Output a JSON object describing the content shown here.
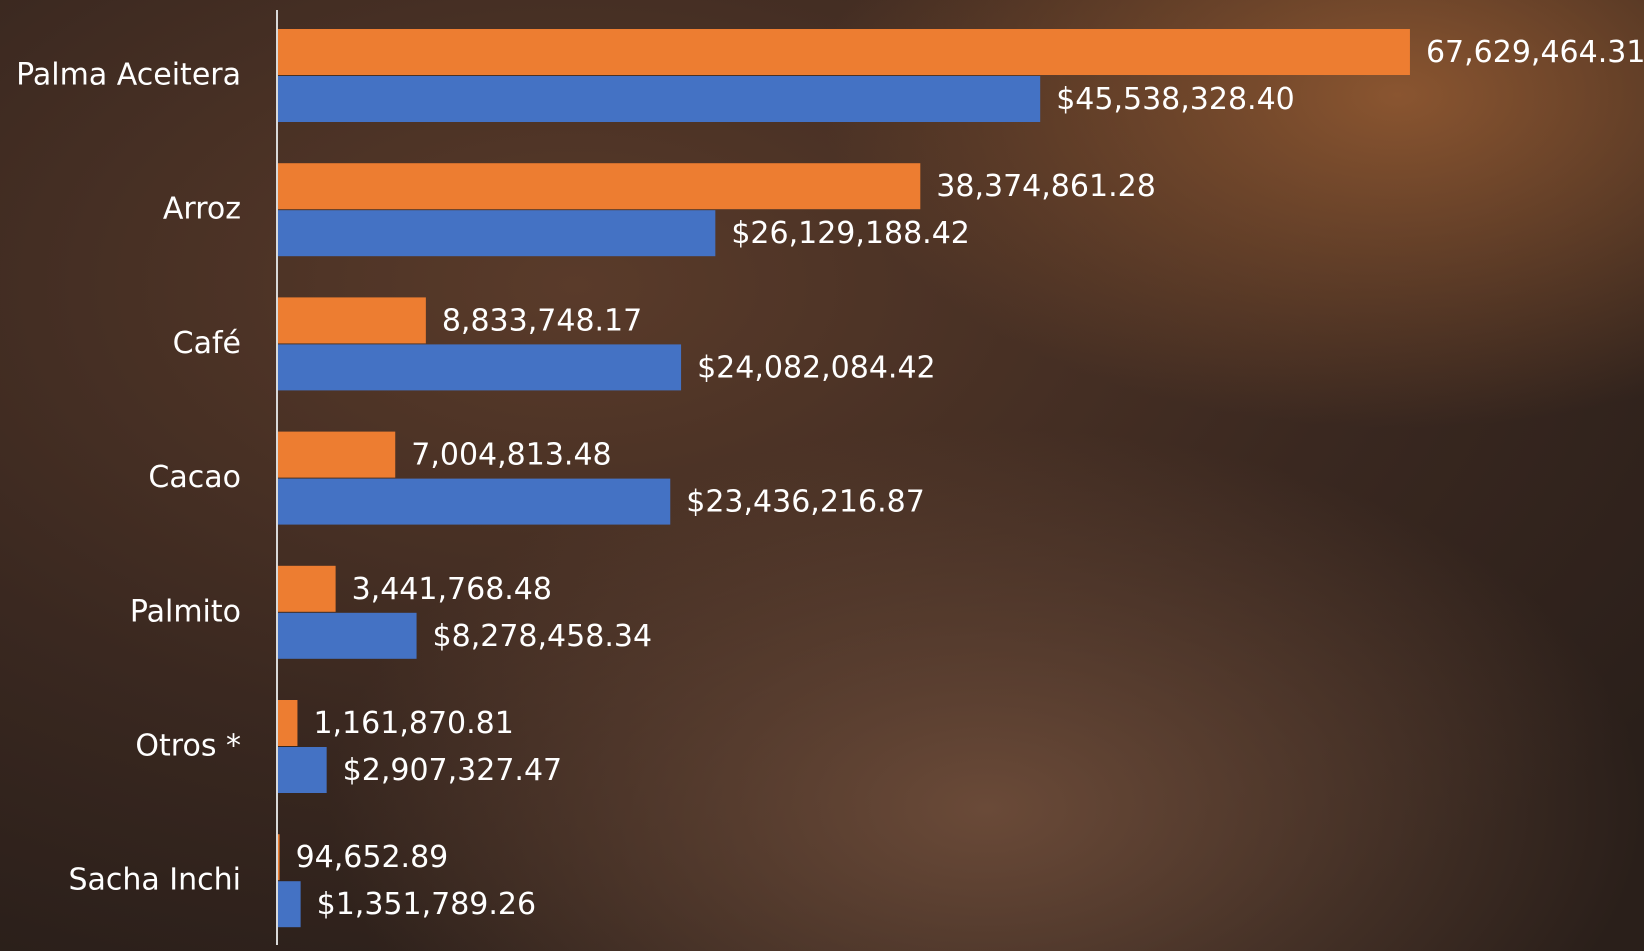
{
  "chart_data": {
    "type": "hbar",
    "categories": [
      "Palma Aceitera",
      "Arroz",
      "Café",
      "Cacao",
      "Palmito",
      "Otros *",
      "Sacha Inchi"
    ],
    "series": [
      {
        "color": "#ed7d31",
        "values": [
          67629464.31,
          38374861.28,
          8833748.17,
          7004813.48,
          3441768.48,
          1161870.81,
          94652.89
        ],
        "value_labels": [
          "67,629,464.31",
          "38,374,861.28",
          "8,833,748.17",
          "7,004,813.48",
          "3,441,768.48",
          "1,161,870.81",
          "94,652.89"
        ]
      },
      {
        "color": "#4472c4",
        "values": [
          45538328.4,
          26129188.42,
          24082084.42,
          23436216.87,
          8278458.34,
          2907327.47,
          1351789.26
        ],
        "value_labels": [
          "$45,538,328.40",
          "$26,129,188.42",
          "$24,082,084.42",
          "$23,436,216.87",
          "$8,278,458.34",
          "$2,907,327.47",
          "$1,351,789.26"
        ]
      }
    ],
    "xlim": [
      0,
      80000000
    ]
  }
}
